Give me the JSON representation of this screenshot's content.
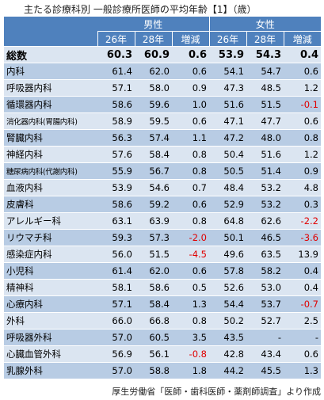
{
  "title": "主たる診療科別 一般診療所医師の平均年齢【1】（歳）",
  "groups": {
    "male": "男性",
    "female": "女性"
  },
  "columns": [
    "26年",
    "28年",
    "増減",
    "26年",
    "28年",
    "増減"
  ],
  "colors": {
    "header": "#4f81bd",
    "row_light": "#dbe5f1",
    "row_dark": "#b8cce4",
    "negative": "#e00000"
  },
  "rows": [
    {
      "name": "総数",
      "m26": "60.3",
      "m28": "60.9",
      "mdiff": "0.6",
      "f26": "53.9",
      "f28": "54.3",
      "fdiff": "0.4"
    },
    {
      "name": "内科",
      "m26": "61.4",
      "m28": "62.0",
      "mdiff": "0.6",
      "f26": "54.1",
      "f28": "54.7",
      "fdiff": "0.6"
    },
    {
      "name": "呼吸器内科",
      "m26": "57.1",
      "m28": "58.0",
      "mdiff": "0.9",
      "f26": "47.3",
      "f28": "48.5",
      "fdiff": "1.2"
    },
    {
      "name": "循環器内科",
      "m26": "58.6",
      "m28": "59.6",
      "mdiff": "1.0",
      "f26": "51.6",
      "f28": "51.5",
      "fdiff": "-0.1"
    },
    {
      "name": "消化器内科(胃腸内科)",
      "m26": "58.9",
      "m28": "59.5",
      "mdiff": "0.6",
      "f26": "47.1",
      "f28": "47.7",
      "fdiff": "0.6"
    },
    {
      "name": "腎臓内科",
      "m26": "56.3",
      "m28": "57.4",
      "mdiff": "1.1",
      "f26": "47.2",
      "f28": "48.0",
      "fdiff": "0.8"
    },
    {
      "name": "神経内科",
      "m26": "57.6",
      "m28": "58.4",
      "mdiff": "0.8",
      "f26": "50.4",
      "f28": "51.6",
      "fdiff": "1.2"
    },
    {
      "name": "糖尿病内科(代謝内科)",
      "m26": "55.9",
      "m28": "56.7",
      "mdiff": "0.8",
      "f26": "50.5",
      "f28": "51.4",
      "fdiff": "0.9"
    },
    {
      "name": "血液内科",
      "m26": "53.9",
      "m28": "54.6",
      "mdiff": "0.7",
      "f26": "48.4",
      "f28": "53.2",
      "fdiff": "4.8"
    },
    {
      "name": "皮膚科",
      "m26": "58.6",
      "m28": "59.2",
      "mdiff": "0.6",
      "f26": "52.9",
      "f28": "53.2",
      "fdiff": "0.3"
    },
    {
      "name": "アレルギー科",
      "m26": "63.1",
      "m28": "63.9",
      "mdiff": "0.8",
      "f26": "64.8",
      "f28": "62.6",
      "fdiff": "-2.2"
    },
    {
      "name": "リウマチ科",
      "m26": "59.3",
      "m28": "57.3",
      "mdiff": "-2.0",
      "f26": "50.1",
      "f28": "46.5",
      "fdiff": "-3.6"
    },
    {
      "name": "感染症内科",
      "m26": "56.0",
      "m28": "51.5",
      "mdiff": "-4.5",
      "f26": "49.6",
      "f28": "63.5",
      "fdiff": "13.9"
    },
    {
      "name": "小児科",
      "m26": "61.4",
      "m28": "62.0",
      "mdiff": "0.6",
      "f26": "57.8",
      "f28": "58.2",
      "fdiff": "0.4"
    },
    {
      "name": "精神科",
      "m26": "58.1",
      "m28": "58.6",
      "mdiff": "0.5",
      "f26": "52.6",
      "f28": "53.0",
      "fdiff": "0.4"
    },
    {
      "name": "心療内科",
      "m26": "57.1",
      "m28": "58.4",
      "mdiff": "1.3",
      "f26": "54.4",
      "f28": "53.7",
      "fdiff": "-0.7"
    },
    {
      "name": "外科",
      "m26": "66.0",
      "m28": "66.8",
      "mdiff": "0.8",
      "f26": "50.2",
      "f28": "52.7",
      "fdiff": "2.5"
    },
    {
      "name": "呼吸器外科",
      "m26": "57.0",
      "m28": "60.5",
      "mdiff": "3.5",
      "f26": "43.5",
      "f28": "-",
      "fdiff": "-"
    },
    {
      "name": "心臓血管外科",
      "m26": "56.9",
      "m28": "56.1",
      "mdiff": "-0.8",
      "f26": "42.8",
      "f28": "43.4",
      "fdiff": "0.6"
    },
    {
      "name": "乳腺外科",
      "m26": "57.0",
      "m28": "58.8",
      "mdiff": "1.8",
      "f26": "44.2",
      "f28": "45.5",
      "fdiff": "1.3"
    }
  ],
  "source": "厚生労働省「医師・歯科医師・薬剤師調査」より作成"
}
